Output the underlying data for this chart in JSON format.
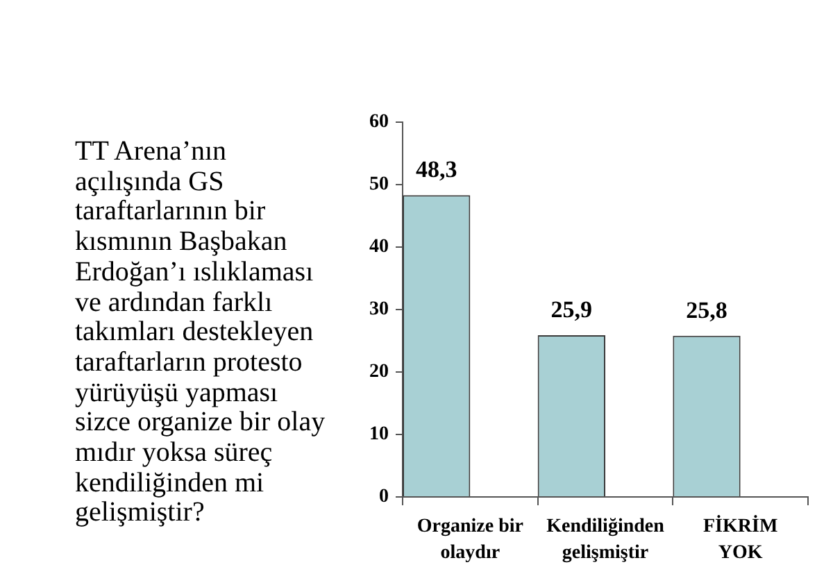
{
  "chart_data": {
    "type": "bar",
    "title": "TT Arena’nın\naçılışında GS\ntaraftarlarının bir\nkısmının Başbakan\nErdoğan’ı ıslıklaması\nve ardından farklı\ntakımları destekleyen\ntaraftarların protesto\nyürüyüşü yapması\nsizce organize bir olay\nmıdır yoksa süreç\nkendiliğinden mi\ngelişmiştir?",
    "categories": [
      "Organize bir\nolaydır",
      "Kendiliğinden\ngelişmiştir",
      "FİKRİM\nYOK"
    ],
    "values": [
      48.3,
      25.9,
      25.8
    ],
    "value_labels": [
      "48,3",
      "25,9",
      "25,8"
    ],
    "color": "#a8d0d4",
    "ylim": [
      0,
      60
    ],
    "yticks": [
      0,
      10,
      20,
      30,
      40,
      50,
      60
    ]
  }
}
